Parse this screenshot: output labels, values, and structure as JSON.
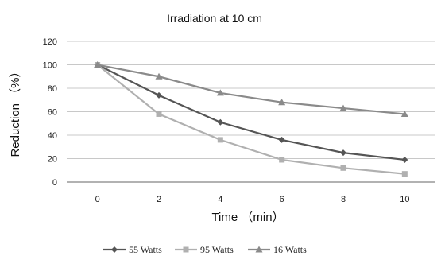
{
  "chart_data": {
    "type": "line",
    "title": "Irradiation at 10 cm",
    "xlabel": "Time （min）",
    "ylabel": "Reduction （%）",
    "x": [
      0,
      2,
      4,
      6,
      8,
      10
    ],
    "ylim": [
      0,
      120
    ],
    "yticks": [
      0,
      20,
      40,
      60,
      80,
      100,
      120
    ],
    "grid": true,
    "legend_position": "bottom",
    "series": [
      {
        "name": "55 Watts",
        "values": [
          100,
          74,
          51,
          36,
          25,
          19
        ],
        "color": "#555555",
        "marker": "diamond"
      },
      {
        "name": "95 Watts",
        "values": [
          100,
          58,
          36,
          19,
          12,
          7
        ],
        "color": "#b0b0b0",
        "marker": "square"
      },
      {
        "name": "16 Watts",
        "values": [
          100,
          90,
          76,
          68,
          63,
          58
        ],
        "color": "#8a8a8a",
        "marker": "triangle"
      }
    ]
  }
}
